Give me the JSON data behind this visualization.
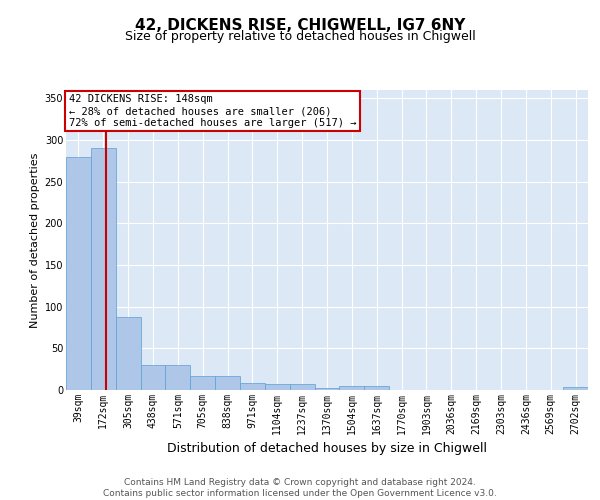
{
  "title1": "42, DICKENS RISE, CHIGWELL, IG7 6NY",
  "title2": "Size of property relative to detached houses in Chigwell",
  "xlabel": "Distribution of detached houses by size in Chigwell",
  "ylabel": "Number of detached properties",
  "bin_labels": [
    "39sqm",
    "172sqm",
    "305sqm",
    "438sqm",
    "571sqm",
    "705sqm",
    "838sqm",
    "971sqm",
    "1104sqm",
    "1237sqm",
    "1370sqm",
    "1504sqm",
    "1637sqm",
    "1770sqm",
    "1903sqm",
    "2036sqm",
    "2169sqm",
    "2303sqm",
    "2436sqm",
    "2569sqm",
    "2702sqm"
  ],
  "bar_heights": [
    280,
    290,
    88,
    30,
    30,
    17,
    17,
    9,
    7,
    7,
    3,
    5,
    5,
    0,
    0,
    0,
    0,
    0,
    0,
    0,
    4
  ],
  "bar_color": "#aec6e8",
  "bar_edge_color": "#5a9fd4",
  "vline_x": 1.09,
  "vline_color": "#cc0000",
  "annotation_text": "42 DICKENS RISE: 148sqm\n← 28% of detached houses are smaller (206)\n72% of semi-detached houses are larger (517) →",
  "annotation_box_color": "#ffffff",
  "annotation_box_edge_color": "#cc0000",
  "ylim": [
    0,
    360
  ],
  "yticks": [
    0,
    50,
    100,
    150,
    200,
    250,
    300,
    350
  ],
  "background_color": "#dce8f5",
  "grid_color": "#ffffff",
  "footer_text": "Contains HM Land Registry data © Crown copyright and database right 2024.\nContains public sector information licensed under the Open Government Licence v3.0.",
  "title1_fontsize": 11,
  "title2_fontsize": 9,
  "xlabel_fontsize": 9,
  "ylabel_fontsize": 8,
  "tick_fontsize": 7,
  "annot_fontsize": 7.5,
  "footer_fontsize": 6.5
}
